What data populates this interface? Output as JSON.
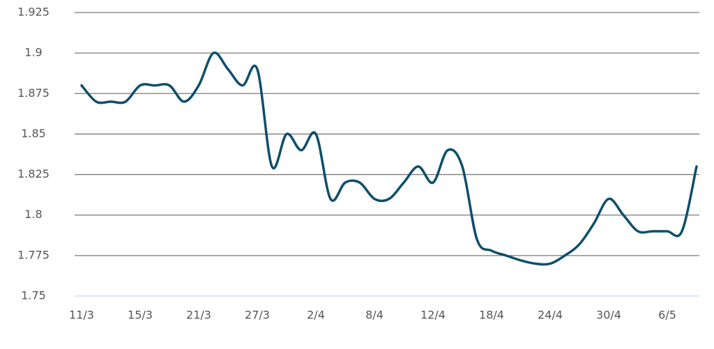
{
  "chart_data": {
    "type": "line",
    "categories": [
      "11/3",
      null,
      null,
      null,
      "15/3",
      null,
      null,
      null,
      "21/3",
      null,
      null,
      null,
      "27/3",
      null,
      null,
      null,
      "2/4",
      null,
      null,
      null,
      "8/4",
      null,
      null,
      null,
      "12/4",
      null,
      null,
      null,
      "18/4",
      null,
      null,
      null,
      "24/4",
      null,
      null,
      null,
      "30/4",
      null,
      null,
      null,
      "6/5",
      null,
      null
    ],
    "series": [
      {
        "color": "#0e4e6c",
        "values": [
          1.88,
          1.87,
          1.87,
          1.87,
          1.88,
          1.88,
          1.88,
          1.87,
          1.88,
          1.9,
          1.89,
          1.88,
          1.89,
          1.83,
          1.85,
          1.84,
          1.85,
          1.81,
          1.82,
          1.82,
          1.81,
          1.81,
          1.82,
          1.83,
          1.82,
          1.84,
          1.83,
          1.785,
          1.778,
          1.775,
          1.772,
          1.77,
          1.77,
          1.775,
          1.782,
          1.795,
          1.81,
          1.8,
          1.79,
          1.79,
          1.79,
          1.79,
          1.83
        ]
      }
    ],
    "ylim": [
      1.75,
      1.925
    ],
    "yticks": [
      1.75,
      1.775,
      1.8,
      1.825,
      1.85,
      1.875,
      1.9,
      1.925
    ],
    "grid": true
  }
}
